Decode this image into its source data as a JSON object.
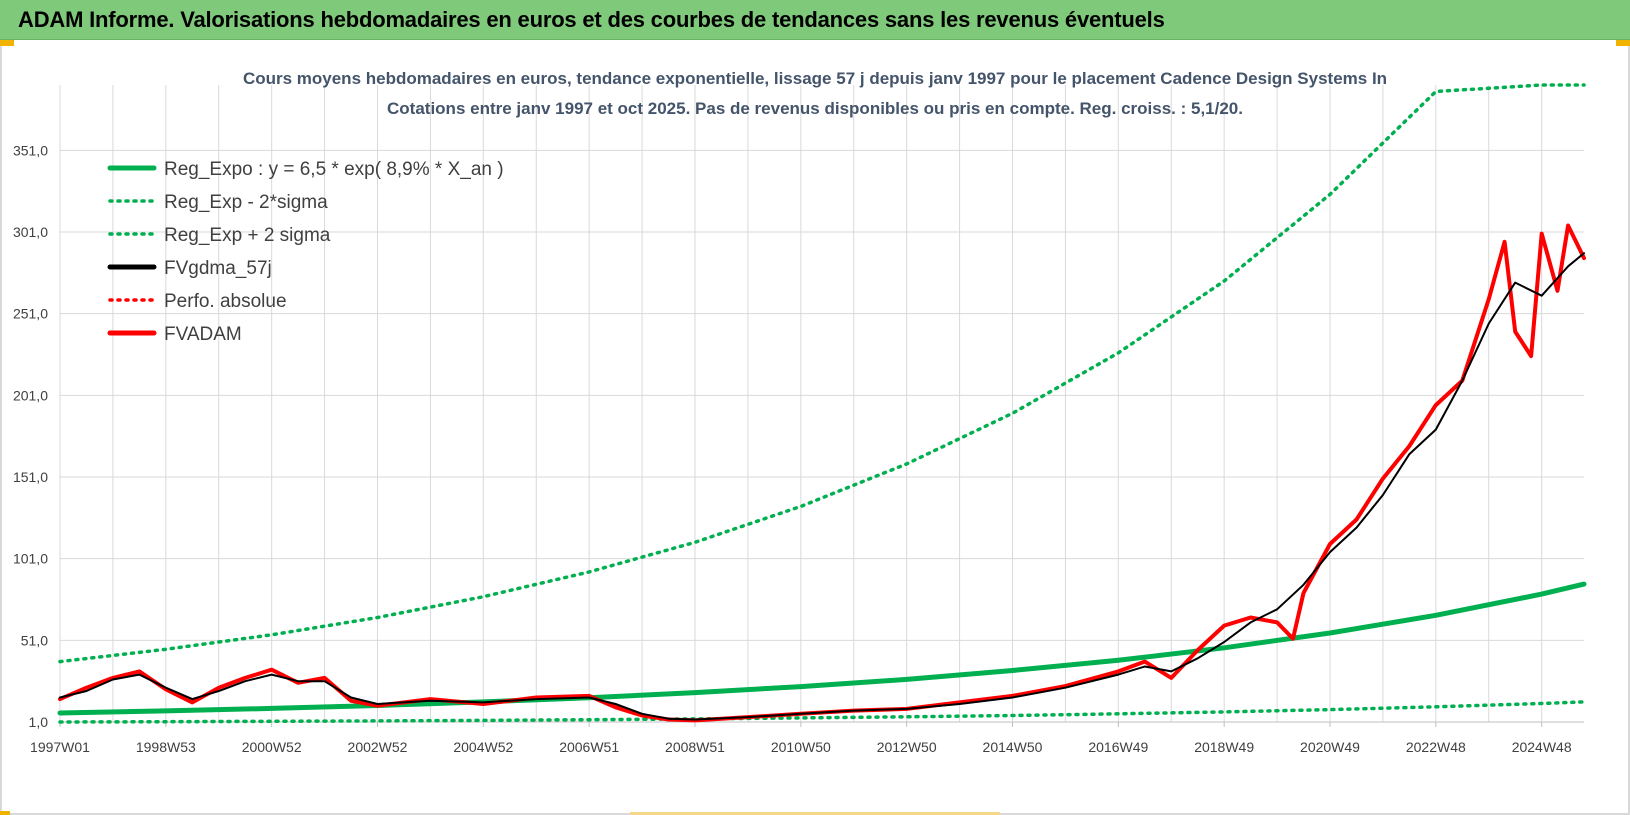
{
  "header": {
    "title": "ADAM Informe. Valorisations hebdomadaires en euros et des courbes de tendances sans les revenus éventuels"
  },
  "colors": {
    "banner": "#7fc97a",
    "trend": "#00b050",
    "smoothed": "#000000",
    "adam": "#ff0000",
    "grid": "#d9d9d9"
  },
  "chart_data": {
    "type": "line",
    "title_lines": [
      "Cours moyens hebdomadaires en euros, tendance exponentielle, lissage 57 j depuis janv 1997 pour le placement Cadence Design Systems In",
      "Cotations entre janv 1997 et oct 2025. Pas de revenus disponibles ou pris en compte. Reg. croiss. : 5,1/20."
    ],
    "xlabel": "",
    "ylabel": "",
    "xlim": [
      1997.0,
      2025.8
    ],
    "ylim": [
      1.0,
      391.0
    ],
    "y_ticks": [
      "1,0",
      "51,0",
      "101,0",
      "151,0",
      "201,0",
      "251,0",
      "301,0",
      "351,0"
    ],
    "y_tick_values": [
      1,
      51,
      101,
      151,
      201,
      251,
      301,
      351
    ],
    "x_tick_labels": [
      "1997W01",
      "1998W53",
      "2000W52",
      "2002W52",
      "2004W52",
      "2006W51",
      "2008W51",
      "2010W50",
      "2012W50",
      "2014W50",
      "2016W49",
      "2018W49",
      "2020W49",
      "2022W48",
      "2024W48"
    ],
    "x_tick_years": [
      1997.0,
      1999.0,
      2001.0,
      2003.0,
      2005.0,
      2007.0,
      2009.0,
      2011.0,
      2013.0,
      2015.0,
      2017.0,
      2019.0,
      2021.0,
      2023.0,
      2025.0
    ],
    "grid": true,
    "legend_position": "top-left",
    "legend": [
      {
        "label": "Reg_Expo : y = 6,5 * exp( 8,9% *  X_an )",
        "style": "solid",
        "color": "#00b050"
      },
      {
        "label": "Reg_Exp - 2*sigma",
        "style": "dotted",
        "color": "#00b050"
      },
      {
        "label": "Reg_Exp + 2 sigma",
        "style": "dotted",
        "color": "#00b050"
      },
      {
        "label": "FVgdma_57j",
        "style": "solid",
        "color": "#000000"
      },
      {
        "label": "Perfo. absolue",
        "style": "dotted",
        "color": "#ff0000"
      },
      {
        "label": "FVADAM",
        "style": "solid",
        "color": "#ff0000"
      }
    ],
    "series": [
      {
        "name": "Reg_Expo",
        "x": [
          1997.0,
          1999.0,
          2001.0,
          2003.0,
          2005.0,
          2007.0,
          2009.0,
          2011.0,
          2013.0,
          2015.0,
          2017.0,
          2019.0,
          2021.0,
          2023.0,
          2025.0,
          2025.8
        ],
        "values": [
          6.5,
          7.8,
          9.3,
          11.1,
          13.3,
          15.9,
          19.0,
          22.7,
          27.1,
          32.5,
          38.8,
          46.4,
          55.5,
          66.3,
          79.3,
          85.4
        ]
      },
      {
        "name": "Reg_Exp - 2*sigma",
        "x": [
          1997.0,
          1999.0,
          2001.0,
          2003.0,
          2005.0,
          2007.0,
          2009.0,
          2011.0,
          2013.0,
          2015.0,
          2017.0,
          2019.0,
          2021.0,
          2023.0,
          2025.0,
          2025.8
        ],
        "values": [
          1.0,
          1.2,
          1.4,
          1.7,
          2.0,
          2.4,
          2.9,
          3.5,
          4.2,
          5.0,
          6.0,
          7.2,
          8.6,
          10.3,
          12.3,
          13.3
        ]
      },
      {
        "name": "Reg_Exp + 2 sigma",
        "x": [
          1997.0,
          1999.0,
          2001.0,
          2003.0,
          2005.0,
          2007.0,
          2009.0,
          2011.0,
          2013.0,
          2015.0,
          2017.0,
          2019.0,
          2021.0,
          2023.0,
          2025.0,
          2025.8
        ],
        "values": [
          38.0,
          45.5,
          54.4,
          65.0,
          77.7,
          92.9,
          111.0,
          133.0,
          159.0,
          190.0,
          227.0,
          271.0,
          324.0,
          387.0,
          391.0,
          391.0
        ]
      },
      {
        "name": "FVgdma_57j",
        "x": [
          1997.0,
          1997.5,
          1998.0,
          1998.5,
          1999.0,
          1999.5,
          2000.0,
          2000.5,
          2001.0,
          2001.5,
          2002.0,
          2002.5,
          2003.0,
          2004.0,
          2005.0,
          2006.0,
          2007.0,
          2007.5,
          2008.0,
          2008.5,
          2009.0,
          2010.0,
          2011.0,
          2012.0,
          2013.0,
          2014.0,
          2015.0,
          2016.0,
          2017.0,
          2017.5,
          2018.0,
          2018.5,
          2019.0,
          2019.5,
          2020.0,
          2020.5,
          2021.0,
          2021.5,
          2022.0,
          2022.5,
          2023.0,
          2023.5,
          2024.0,
          2024.5,
          2025.0,
          2025.5,
          2025.8
        ],
        "values": [
          16,
          20,
          27,
          30,
          22,
          15,
          20,
          26,
          30,
          26,
          26,
          16,
          12,
          14,
          13,
          15,
          16,
          12,
          6,
          3,
          2.5,
          4,
          6,
          8,
          9,
          12,
          16,
          22,
          30,
          35,
          32,
          40,
          50,
          62,
          70,
          85,
          105,
          120,
          140,
          165,
          180,
          210,
          245,
          270,
          262,
          280,
          288
        ]
      },
      {
        "name": "FVADAM",
        "x": [
          1997.0,
          1997.5,
          1998.0,
          1998.5,
          1999.0,
          1999.5,
          2000.0,
          2000.5,
          2001.0,
          2001.5,
          2002.0,
          2002.5,
          2003.0,
          2004.0,
          2005.0,
          2006.0,
          2007.0,
          2007.5,
          2008.0,
          2008.5,
          2009.0,
          2010.0,
          2011.0,
          2012.0,
          2013.0,
          2014.0,
          2015.0,
          2016.0,
          2017.0,
          2017.5,
          2018.0,
          2018.5,
          2019.0,
          2019.5,
          2020.0,
          2020.3,
          2020.5,
          2021.0,
          2021.5,
          2022.0,
          2022.5,
          2023.0,
          2023.5,
          2024.0,
          2024.3,
          2024.5,
          2024.8,
          2025.0,
          2025.3,
          2025.5,
          2025.8
        ],
        "values": [
          15,
          22,
          28,
          32,
          21,
          13,
          22,
          28,
          33,
          25,
          28,
          14,
          11,
          15,
          12,
          16,
          17,
          10,
          5,
          2.5,
          2,
          4,
          6,
          8,
          9,
          13,
          17,
          23,
          32,
          38,
          28,
          45,
          60,
          65,
          62,
          52,
          80,
          110,
          125,
          150,
          170,
          195,
          210,
          260,
          295,
          240,
          225,
          300,
          265,
          305,
          285
        ]
      }
    ]
  }
}
